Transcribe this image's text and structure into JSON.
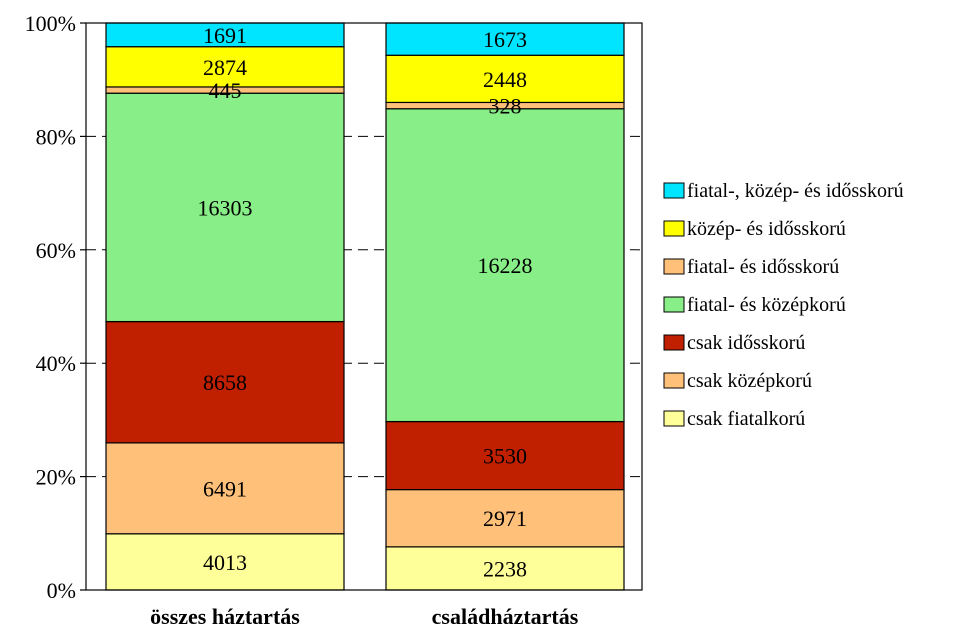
{
  "chart_data": {
    "type": "bar",
    "stacked": "percent",
    "categories": [
      "összes háztartás",
      "családháztartás"
    ],
    "series": [
      {
        "name": "csak fiatalkorú",
        "values": [
          4013,
          2238
        ],
        "color": "#FFFF99"
      },
      {
        "name": "csak középkorú",
        "values": [
          6491,
          2971
        ],
        "color": "#FFC07A"
      },
      {
        "name": "csak idősskorú",
        "values": [
          8658,
          3530
        ],
        "color": "#C02000"
      },
      {
        "name": "fiatal- és középkorú",
        "values": [
          16303,
          16228
        ],
        "color": "#88EE88"
      },
      {
        "name": "fiatal- és idősskorú",
        "values": [
          445,
          328
        ],
        "color": "#FFC07A"
      },
      {
        "name": "közép- és idősskorú",
        "values": [
          2874,
          2448
        ],
        "color": "#FFFF00"
      },
      {
        "name": "fiatal-, közép- és idősskorú",
        "values": [
          1691,
          1673
        ],
        "color": "#00E5FF"
      }
    ],
    "y_ticks": [
      "0%",
      "20%",
      "40%",
      "60%",
      "80%",
      "100%"
    ],
    "ylim": [
      0,
      100
    ],
    "grid": "dashed horizontal",
    "legend": "right",
    "legend_order": [
      "fiatal-, közép- és idősskorú",
      "közép- és idősskorú",
      "fiatal- és idősskorú",
      "fiatal- és középkorú",
      "csak idősskorú",
      "csak középkorú",
      "csak fiatalkorú"
    ]
  }
}
